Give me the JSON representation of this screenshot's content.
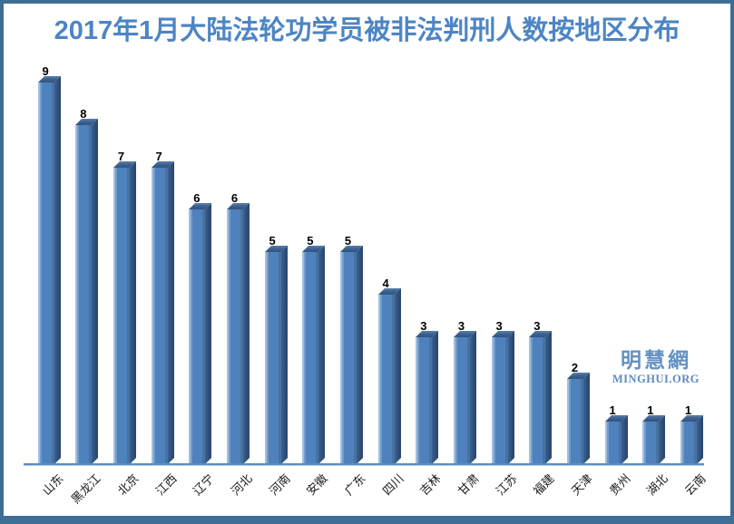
{
  "title": {
    "text": "2017年1月大陆法轮功学员被非法判刑人数按地区分布",
    "color": "#4d85c4"
  },
  "watermark": {
    "cjk": "明慧網",
    "latin": "MINGHUI.ORG",
    "color": "#6391c1"
  },
  "frame": {
    "border_color": "#3d6f96",
    "background": "#ffffff"
  },
  "chart_data": {
    "type": "bar",
    "title": "2017年1月大陆法轮功学员被非法判刑人数按地区分布",
    "categories": [
      "山东",
      "黑龙江",
      "北京",
      "江西",
      "辽宁",
      "河北",
      "河南",
      "安徽",
      "广东",
      "四川",
      "吉林",
      "甘肃",
      "江苏",
      "福建",
      "天津",
      "贵州",
      "湖北",
      "云南"
    ],
    "values": [
      9,
      8,
      7,
      7,
      6,
      6,
      5,
      5,
      5,
      4,
      3,
      3,
      3,
      3,
      2,
      1,
      1,
      1
    ],
    "xlabel": "",
    "ylabel": "",
    "ylim": [
      0,
      9
    ],
    "grid": false,
    "legend": false,
    "style": "3d-bar",
    "bar_face_color": "#4f81bd",
    "bar_side_color": "#2e4d77",
    "bar_top_color": "#3a5e8e",
    "axis_line_color": "#5b8cc4",
    "data_label_color": "#000000"
  }
}
